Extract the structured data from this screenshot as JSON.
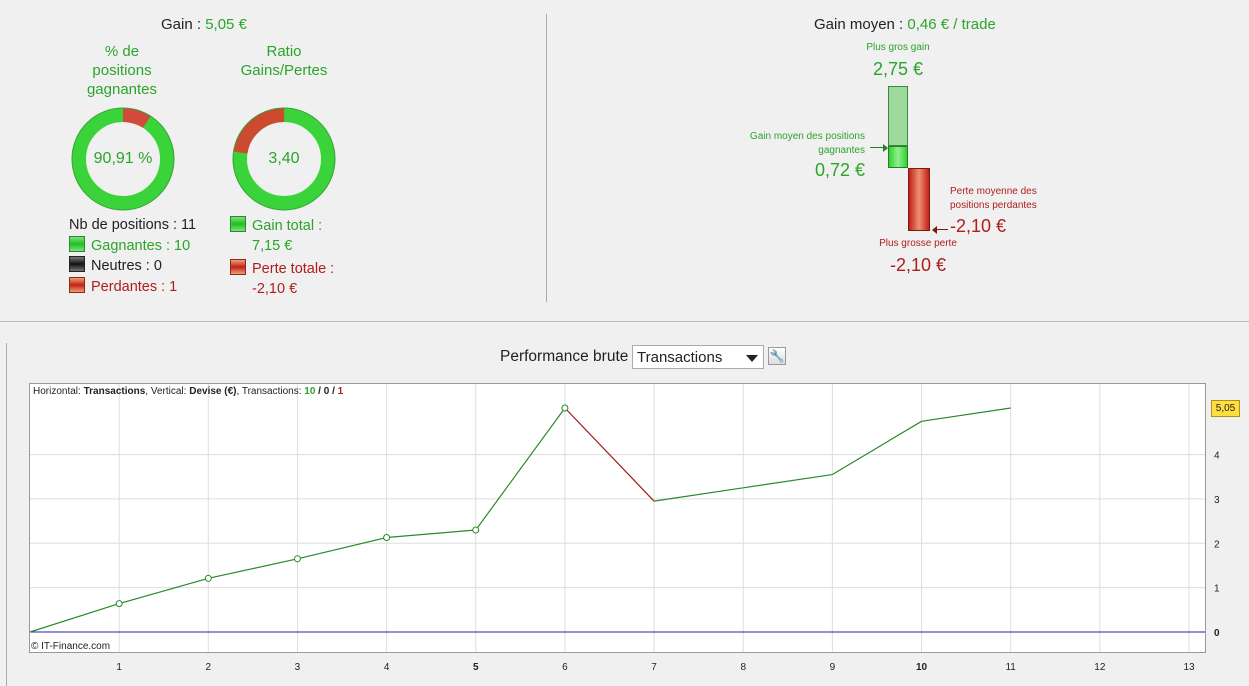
{
  "summary": {
    "gain_label": "Gain :",
    "gain_value": "5,05 €",
    "win_pct_title_line1": "% de",
    "win_pct_title_line2": "positions",
    "win_pct_title_line3": "gagnantes",
    "win_pct_value": "90,91 %",
    "win_fraction": 0.9091,
    "ratio_title_line1": "Ratio",
    "ratio_title_line2": "Gains/Pertes",
    "ratio_value": "3,40",
    "ratio_gain_fraction": 0.773,
    "nb_positions": "Nb de positions : 11",
    "winning": "Gagnantes : 10",
    "neutral": "Neutres : 0",
    "losing": "Perdantes : 1",
    "total_gain_label": "Gain total :",
    "total_gain_value": "7,15 €",
    "total_loss_label": "Perte totale :",
    "total_loss_value": "-2,10 €"
  },
  "average": {
    "title_label": "Gain moyen :",
    "title_value": "0,46 € / trade",
    "biggest_gain_label": "Plus gros gain",
    "biggest_gain_value": "2,75 €",
    "avg_win_label_line1": "Gain moyen des positions",
    "avg_win_label_line2": "gagnantes",
    "avg_win_value": "0,72 €",
    "avg_loss_label_line1": "Perte moyenne des",
    "avg_loss_label_line2": "positions perdantes",
    "avg_loss_value": "-2,10 €",
    "biggest_loss_label": "Plus grosse perte",
    "biggest_loss_value": "-2,10 €"
  },
  "toolbar": {
    "title": "Performance brute",
    "select_value": "Transactions"
  },
  "chart_info": {
    "h_label": "Horizontal:",
    "h_value": "Transactions",
    "v_label": ", Vertical:",
    "v_value": "Devise (€)",
    "t_label": ", Transactions:",
    "t_win": "10",
    "sep1": " / ",
    "t_neutral": "0",
    "sep2": " / ",
    "t_loss": "1"
  },
  "copyright": "© IT-Finance.com",
  "last_value_badge": "5,05",
  "colors": {
    "gain_green": "#2aa52a",
    "loss_red": "#b01d1d",
    "line_green": "#2a8a2a",
    "line_red": "#a01818",
    "zero_line": "#2020a0",
    "badge": "#ffdf40"
  },
  "chart_data": {
    "type": "line",
    "x": [
      0,
      1,
      2,
      3,
      4,
      5,
      6,
      7,
      8,
      9,
      10,
      11
    ],
    "y": [
      0,
      0.64,
      1.21,
      1.65,
      2.13,
      2.3,
      5.05,
      2.95,
      3.25,
      3.55,
      4.75,
      5.05
    ],
    "markers_at": [
      1,
      2,
      3,
      4,
      5,
      6
    ],
    "loss_segment": [
      6,
      7
    ],
    "xlim": [
      0,
      13
    ],
    "ylim": [
      -0.45,
      5.5
    ],
    "x_ticks": [
      "1",
      "2",
      "3",
      "4",
      "5",
      "6",
      "7",
      "8",
      "9",
      "10",
      "11",
      "12",
      "13"
    ],
    "x_ticks_bold": [
      "5",
      "10"
    ],
    "y_ticks": [
      "0",
      "1",
      "2",
      "3",
      "4"
    ],
    "grid": true
  }
}
